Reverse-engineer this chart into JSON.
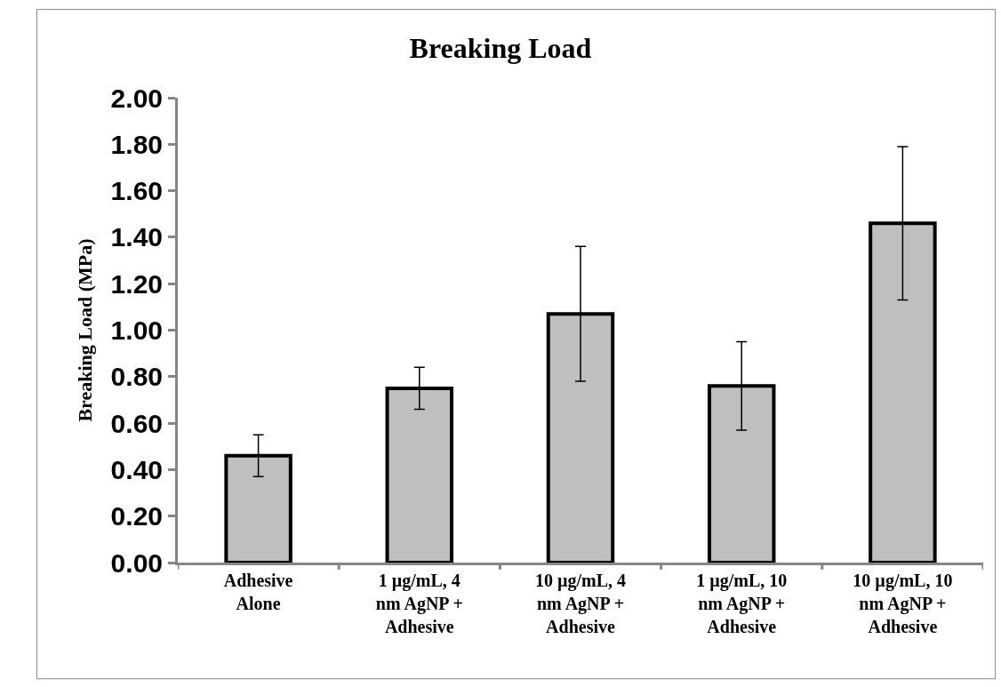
{
  "chart_data": {
    "type": "bar",
    "title": "Breaking Load",
    "ylabel": "Breaking Load (MPa)",
    "categories": [
      "Adhesive Alone",
      "1 µg/mL, 4 nm AgNP + Adhesive",
      "10 µg/mL, 4 nm AgNP + Adhesive",
      "1 µg/mL, 10 nm AgNP + Adhesive",
      "10 µg/mL, 10 nm AgNP + Adhesive"
    ],
    "values": [
      0.46,
      0.75,
      1.07,
      0.76,
      1.46
    ],
    "errors": [
      0.09,
      0.09,
      0.29,
      0.19,
      0.33
    ],
    "color": "#bfbfbf",
    "ylim": [
      0,
      2
    ],
    "yticks": [
      {
        "value": 0,
        "label": "0.00"
      },
      {
        "value": 0.2,
        "label": "0.20"
      },
      {
        "value": 0.4,
        "label": "0.40"
      },
      {
        "value": 0.6,
        "label": "0.60"
      },
      {
        "value": 0.8,
        "label": "0.80"
      },
      {
        "value": 1.0,
        "label": "1.00"
      },
      {
        "value": 1.2,
        "label": "1.20"
      },
      {
        "value": 1.4,
        "label": "1.40"
      },
      {
        "value": 1.6,
        "label": "1.60"
      },
      {
        "value": 1.8,
        "label": "1.80"
      },
      {
        "value": 2.0,
        "label": "2.00"
      }
    ]
  }
}
